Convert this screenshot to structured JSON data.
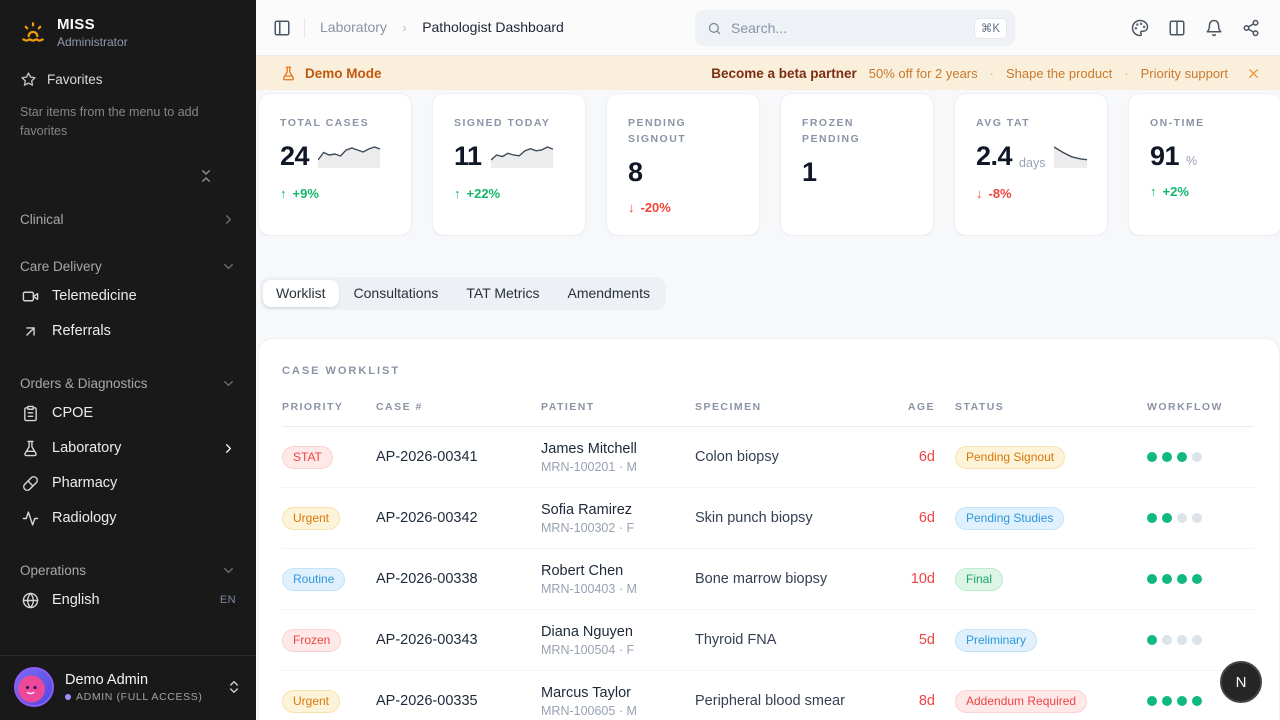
{
  "sidebar": {
    "app": {
      "name": "MISS",
      "subtitle": "Administrator"
    },
    "favorites": {
      "label": "Favorites",
      "hint": "Star items from the menu to add favorites"
    },
    "sections": [
      {
        "label": "Clinical",
        "chevron": "chevron-right",
        "items": []
      },
      {
        "label": "Care Delivery",
        "chevron": "chevron-down",
        "items": [
          {
            "label": "Telemedicine",
            "icon": "video"
          },
          {
            "label": "Referrals",
            "icon": "arrow-up-right"
          }
        ]
      },
      {
        "label": "Orders & Diagnostics",
        "chevron": "chevron-down",
        "items": [
          {
            "label": "CPOE",
            "icon": "clipboard"
          },
          {
            "label": "Laboratory",
            "icon": "flask",
            "trailing_chevron": true,
            "active": true
          },
          {
            "label": "Pharmacy",
            "icon": "pill"
          },
          {
            "label": "Radiology",
            "icon": "activity"
          }
        ]
      },
      {
        "label": "Operations",
        "chevron": "chevron-down",
        "items": [
          {
            "label": "English",
            "icon": "globe",
            "badge": "EN"
          }
        ]
      }
    ],
    "user": {
      "name": "Demo Admin",
      "role": "ADMIN (FULL ACCESS)"
    }
  },
  "topbar": {
    "breadcrumb": {
      "parent": "Laboratory",
      "separator": "›",
      "current": "Pathologist Dashboard"
    },
    "search": {
      "placeholder": "Search...",
      "shortcut": "⌘K"
    }
  },
  "banner": {
    "label": "Demo Mode",
    "cta": "Become a beta partner",
    "perks": [
      "50% off for 2 years",
      "Shape the product",
      "Priority support"
    ],
    "separator": "·"
  },
  "stats": [
    {
      "label": "TOTAL CASES",
      "value": "24",
      "delta": "+9%",
      "trend": "up",
      "spark": [
        5,
        6.5,
        6,
        6.2,
        5.8,
        7,
        7.4,
        7,
        6.6,
        7.2,
        7.6,
        7.2
      ]
    },
    {
      "label": "SIGNED TODAY",
      "value": "11",
      "delta": "+22%",
      "trend": "up",
      "spark": [
        4.8,
        6,
        5.6,
        6.4,
        6,
        5.8,
        7,
        7.5,
        7,
        7.2,
        7.9,
        7.4
      ]
    },
    {
      "label": "PENDING SIGNOUT",
      "value": "8",
      "delta": "-20%",
      "trend": "down"
    },
    {
      "label": "FROZEN PENDING",
      "value": "1"
    },
    {
      "label": "AVG TAT",
      "value": "2.4",
      "unit": "days",
      "delta": "-8%",
      "trend": "down",
      "spark": [
        8,
        7.5,
        7.1,
        6.9,
        6.8,
        6.8,
        6.9,
        7
      ]
    },
    {
      "label": "ON-TIME",
      "value": "91",
      "unit": "%",
      "delta": "+2%",
      "trend": "up"
    }
  ],
  "tabs": [
    {
      "label": "Worklist",
      "active": true
    },
    {
      "label": "Consultations",
      "active": false
    },
    {
      "label": "TAT Metrics",
      "active": false
    },
    {
      "label": "Amendments",
      "active": false
    }
  ],
  "worklist": {
    "title": "CASE WORKLIST",
    "columns": [
      "PRIORITY",
      "CASE #",
      "PATIENT",
      "SPECIMEN",
      "AGE",
      "STATUS",
      "WORKFLOW"
    ],
    "rows": [
      {
        "priority": "STAT",
        "priority_tone": "red",
        "case_number": "AP-2026-00341",
        "patient": "James Mitchell",
        "meta": "MRN-100201 · M",
        "specimen": "Colon biopsy",
        "age": "6d",
        "status": "Pending Signout",
        "status_tone": "amber",
        "workflow_done": 3,
        "workflow_total": 4
      },
      {
        "priority": "Urgent",
        "priority_tone": "amber",
        "case_number": "AP-2026-00342",
        "patient": "Sofia Ramirez",
        "meta": "MRN-100302 · F",
        "specimen": "Skin punch biopsy",
        "age": "6d",
        "status": "Pending Studies",
        "status_tone": "blue",
        "workflow_done": 2,
        "workflow_total": 4
      },
      {
        "priority": "Routine",
        "priority_tone": "blue",
        "case_number": "AP-2026-00338",
        "patient": "Robert Chen",
        "meta": "MRN-100403 · M",
        "specimen": "Bone marrow biopsy",
        "age": "10d",
        "status": "Final",
        "status_tone": "green",
        "workflow_done": 4,
        "workflow_total": 4
      },
      {
        "priority": "Frozen",
        "priority_tone": "red",
        "case_number": "AP-2026-00343",
        "patient": "Diana Nguyen",
        "meta": "MRN-100504 · F",
        "specimen": "Thyroid FNA",
        "age": "5d",
        "status": "Preliminary",
        "status_tone": "blue",
        "workflow_done": 1,
        "workflow_total": 4
      },
      {
        "priority": "Urgent",
        "priority_tone": "amber",
        "case_number": "AP-2026-00335",
        "patient": "Marcus Taylor",
        "meta": "MRN-100605 · M",
        "specimen": "Peripheral blood smear",
        "age": "8d",
        "status": "Addendum Required",
        "status_tone": "red",
        "workflow_done": 4,
        "workflow_total": 4
      }
    ]
  },
  "fab": {
    "label": "N"
  },
  "colors": {
    "sidebar_bg": "#191919",
    "banner_bg": "#f9efda",
    "accent_amber": "#f59e0b",
    "green": "#10b981",
    "red": "#ef4444",
    "workflow_on": "#10b981",
    "workflow_off": "#dde3ea"
  }
}
